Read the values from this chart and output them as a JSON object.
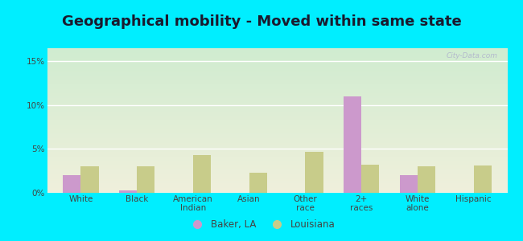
{
  "title": "Geographical mobility - Moved within same state",
  "categories": [
    "White",
    "Black",
    "American\nIndian",
    "Asian",
    "Other\nrace",
    "2+\nraces",
    "White\nalone",
    "Hispanic"
  ],
  "baker_la": [
    2.0,
    0.3,
    0.0,
    0.0,
    0.0,
    11.0,
    2.0,
    0.0
  ],
  "louisiana": [
    3.0,
    3.0,
    4.3,
    2.3,
    4.7,
    3.2,
    3.0,
    3.1
  ],
  "baker_color": "#cc99cc",
  "louisiana_color": "#c8cc8a",
  "bg_outer": "#00eeff",
  "bg_chart_top": "#d0ecd0",
  "bg_chart_bottom": "#f0f0dc",
  "ylim": [
    0,
    16.5
  ],
  "yticks": [
    0,
    5,
    10,
    15
  ],
  "ytick_labels": [
    "0%",
    "5%",
    "10%",
    "15%"
  ],
  "bar_width": 0.32,
  "legend_labels": [
    "Baker, LA",
    "Louisiana"
  ],
  "watermark": "City-Data.com",
  "title_fontsize": 13,
  "tick_fontsize": 7.5,
  "legend_fontsize": 8.5
}
